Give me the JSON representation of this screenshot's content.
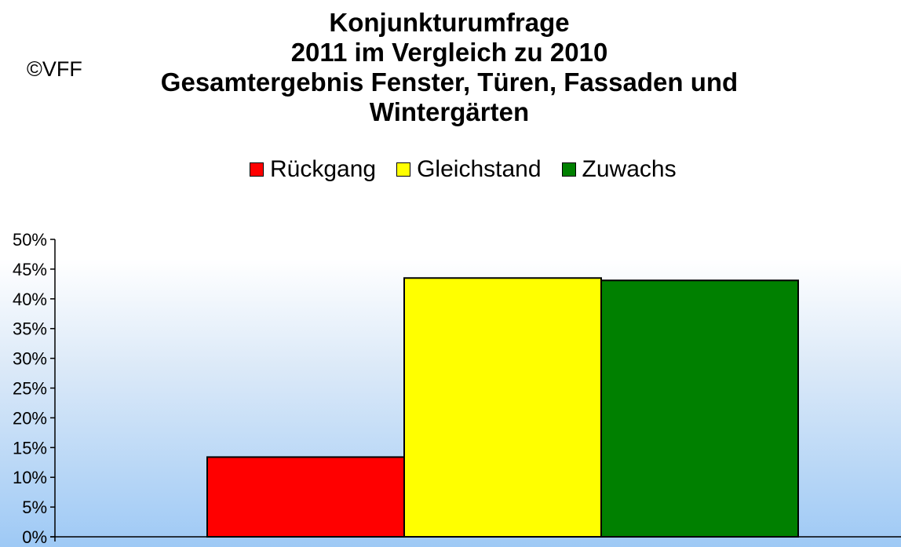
{
  "copyright": "©VFF",
  "chart_data": {
    "type": "bar",
    "title_lines": [
      "Konjunkturumfrage",
      "2011 im Vergleich zu 2010",
      "Gesamtergebnis Fenster, Türen, Fassaden und",
      "Wintergärten"
    ],
    "categories": [
      "Rückgang",
      "Gleichstand",
      "Zuwachs"
    ],
    "values": [
      13.4,
      43.5,
      43.1
    ],
    "colors": [
      "#ff0000",
      "#ffff00",
      "#008000"
    ],
    "legend_position": "top",
    "ylim": [
      0,
      50
    ],
    "yticks": [
      "0%",
      "5%",
      "10%",
      "15%",
      "20%",
      "25%",
      "30%",
      "35%",
      "40%",
      "45%",
      "50%"
    ],
    "grid": false
  }
}
